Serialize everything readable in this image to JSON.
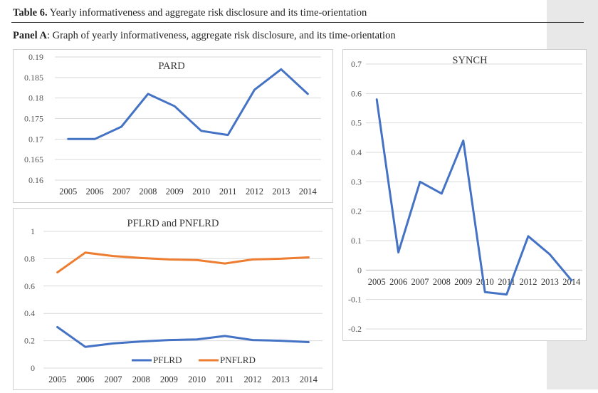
{
  "header": {
    "table_label": "Table 6.",
    "table_title": " Yearly informativeness and aggregate risk disclosure and its time-orientation",
    "panel_label": "Panel A",
    "panel_title": ": Graph of yearly informativeness, aggregate risk disclosure, and its time-orientation"
  },
  "colors": {
    "blue": "#4472C4",
    "orange": "#ED7D31",
    "grid": "#d9d9d9",
    "axis_text": "#555555"
  },
  "chart_data": [
    {
      "id": "pard",
      "type": "line",
      "title": "PARD",
      "categories": [
        "2005",
        "2006",
        "2007",
        "2008",
        "2009",
        "2010",
        "2011",
        "2012",
        "2013",
        "2014"
      ],
      "series": [
        {
          "name": "PARD",
          "color": "#4472C4",
          "values": [
            0.17,
            0.17,
            0.173,
            0.181,
            0.178,
            0.172,
            0.171,
            0.182,
            0.187,
            0.181
          ]
        }
      ],
      "ylim": [
        0.16,
        0.19
      ],
      "yticks": [
        "0.16",
        "0.165",
        "0.17",
        "0.175",
        "0.18",
        "0.185",
        "0.19"
      ],
      "legend": "none"
    },
    {
      "id": "synch",
      "type": "line",
      "title": "SYNCH",
      "categories": [
        "2005",
        "2006",
        "2007",
        "2008",
        "2009",
        "2010",
        "2011",
        "2012",
        "2013",
        "2014"
      ],
      "series": [
        {
          "name": "SYNCH",
          "color": "#4472C4",
          "values": [
            0.58,
            0.06,
            0.3,
            0.26,
            0.44,
            -0.075,
            -0.083,
            0.115,
            0.053,
            -0.035
          ]
        }
      ],
      "ylim": [
        -0.2,
        0.7
      ],
      "yticks": [
        "-0.2",
        "-0.1",
        "0",
        "0.1",
        "0.2",
        "0.3",
        "0.4",
        "0.5",
        "0.6",
        "0.7"
      ],
      "legend": "none"
    },
    {
      "id": "pflrd",
      "type": "line",
      "title": "PFLRD and PNFLRD",
      "categories": [
        "2005",
        "2006",
        "2007",
        "2008",
        "2009",
        "2010",
        "2011",
        "2012",
        "2013",
        "2014"
      ],
      "series": [
        {
          "name": "PFLRD",
          "color": "#4472C4",
          "values": [
            0.3,
            0.155,
            0.18,
            0.195,
            0.205,
            0.21,
            0.235,
            0.205,
            0.2,
            0.19
          ]
        },
        {
          "name": "PNFLRD",
          "color": "#ED7D31",
          "values": [
            0.7,
            0.845,
            0.82,
            0.805,
            0.795,
            0.79,
            0.765,
            0.795,
            0.8,
            0.81
          ]
        }
      ],
      "ylim": [
        0,
        1
      ],
      "yticks": [
        "0",
        "0.2",
        "0.4",
        "0.6",
        "0.8",
        "1"
      ],
      "legend": "bottom"
    }
  ]
}
